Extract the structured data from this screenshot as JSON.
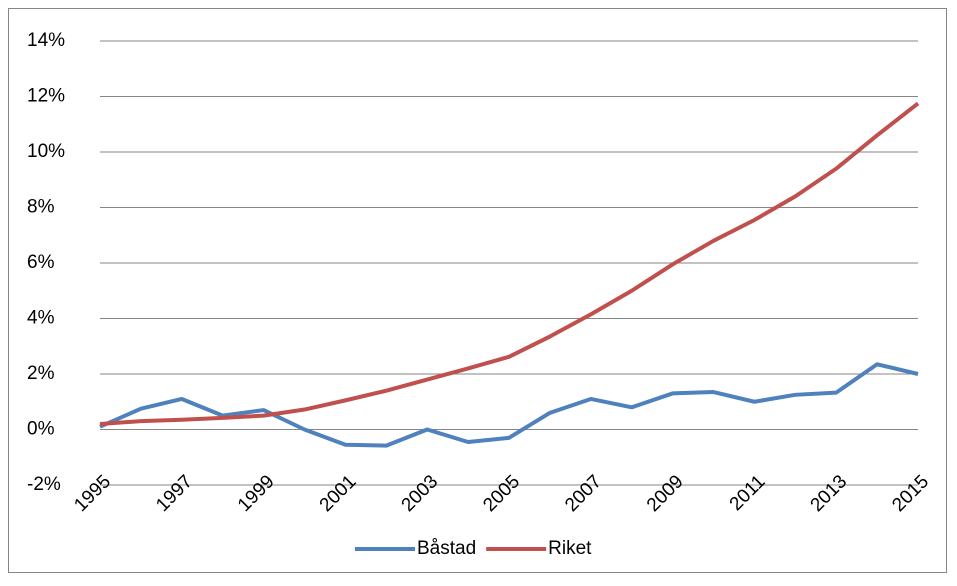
{
  "chart_data": {
    "type": "line",
    "x": [
      1995,
      1996,
      1997,
      1998,
      1999,
      2000,
      2001,
      2002,
      2003,
      2004,
      2005,
      2006,
      2007,
      2008,
      2009,
      2010,
      2011,
      2012,
      2013,
      2014,
      2015
    ],
    "xlim": [
      1995,
      2015
    ],
    "xticks": [
      1995,
      1997,
      1999,
      2001,
      2003,
      2005,
      2007,
      2009,
      2011,
      2013,
      2015
    ],
    "ylim": [
      -2,
      14
    ],
    "yticks": [
      {
        "value": -2,
        "label": "-2%"
      },
      {
        "value": 0,
        "label": "0%"
      },
      {
        "value": 2,
        "label": "2%"
      },
      {
        "value": 4,
        "label": "4%"
      },
      {
        "value": 6,
        "label": "6%"
      },
      {
        "value": 8,
        "label": "8%"
      },
      {
        "value": 10,
        "label": "10%"
      },
      {
        "value": 12,
        "label": "12%"
      },
      {
        "value": 14,
        "label": "14%"
      }
    ],
    "grid": true,
    "legend": "bottom",
    "series": [
      {
        "name": "Båstad",
        "color": "#4f81bd",
        "values": [
          0.1,
          0.75,
          1.1,
          0.5,
          0.7,
          0.0,
          -0.55,
          -0.58,
          0.0,
          -0.45,
          -0.3,
          0.6,
          1.1,
          0.8,
          1.3,
          1.35,
          1.0,
          1.25,
          1.33,
          2.35,
          2.0
        ]
      },
      {
        "name": "Riket",
        "color": "#c0504d",
        "values": [
          0.2,
          0.3,
          0.35,
          0.42,
          0.5,
          0.72,
          1.05,
          1.4,
          1.8,
          2.2,
          2.62,
          3.35,
          4.15,
          5.0,
          5.95,
          6.8,
          7.55,
          8.4,
          9.4,
          10.6,
          11.75
        ]
      }
    ]
  }
}
